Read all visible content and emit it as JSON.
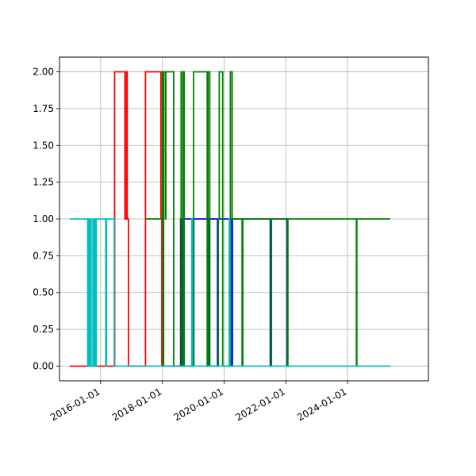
{
  "chart_data": {
    "type": "line",
    "step": "post",
    "title": "",
    "xlabel": "",
    "ylabel": "",
    "grid": true,
    "xlim": [
      "2014-09-01",
      "2026-08-15"
    ],
    "ylim": [
      -0.1,
      2.1
    ],
    "x_ticks": [
      "2016-01-01",
      "2018-01-01",
      "2020-01-01",
      "2022-01-01",
      "2024-01-01"
    ],
    "y_ticks": [
      0.0,
      0.25,
      0.5,
      0.75,
      1.0,
      1.25,
      1.5,
      1.75,
      2.0
    ],
    "y_tick_labels": [
      "0.00",
      "0.25",
      "0.50",
      "0.75",
      "1.00",
      "1.25",
      "1.50",
      "1.75",
      "2.00"
    ],
    "series": [
      {
        "color": "#ff0000",
        "x": [
          "2015-01-01",
          "2016-06-15",
          "2016-10-15",
          "2016-11-01",
          "2016-11-10",
          "2016-11-25",
          "2017-06-15",
          "2017-12-15",
          "2017-12-25"
        ],
        "y": [
          0,
          2,
          1,
          2,
          1,
          0,
          2,
          1,
          0
        ],
        "end": "2017-12-25"
      },
      {
        "color": "#0000ff",
        "x": [
          "2017-12-25",
          "2018-08-05",
          "2018-08-12",
          "2018-08-20",
          "2018-09-01",
          "2018-09-10",
          "2019-01-01",
          "2019-01-08",
          "2019-07-01",
          "2019-07-08",
          "2019-10-15",
          "2019-10-22",
          "2020-04-01",
          "2020-04-08",
          "2021-07-01",
          "2021-07-08",
          "2022-01-15",
          "2022-01-22"
        ],
        "y": [
          0,
          1,
          0,
          1,
          0,
          1,
          0,
          1,
          0,
          1,
          0,
          1,
          0,
          1,
          0,
          1,
          0,
          1
        ],
        "end": "2022-01-22"
      },
      {
        "color": "#008000",
        "x": [
          "2017-06-15",
          "2018-01-01",
          "2018-01-10",
          "2018-01-15",
          "2018-02-05",
          "2018-02-10",
          "2018-05-15",
          "2018-08-10",
          "2018-08-15",
          "2018-09-05",
          "2018-09-15",
          "2019-01-05",
          "2019-06-15",
          "2019-06-25",
          "2019-07-15",
          "2019-10-25",
          "2019-11-05",
          "2019-12-15",
          "2020-03-15",
          "2020-04-05",
          "2020-08-01",
          "2020-08-10",
          "2021-07-10",
          "2021-07-15",
          "2022-01-20",
          "2022-01-25",
          "2024-04-15",
          "2024-04-20"
        ],
        "y": [
          1,
          2,
          0,
          2,
          1,
          2,
          0,
          2,
          0,
          2,
          0,
          2,
          0,
          2,
          0,
          1,
          2,
          0,
          2,
          1,
          0,
          1,
          0,
          1,
          0,
          1,
          0,
          1
        ],
        "end": "2025-05-20"
      },
      {
        "color": "#00bfbf",
        "x": [
          "2015-01-01",
          "2015-08-01",
          "2015-08-10",
          "2015-08-20",
          "2015-09-01",
          "2015-09-10",
          "2015-10-01",
          "2015-10-10",
          "2015-10-20",
          "2015-11-01",
          "2015-11-10",
          "2016-03-01",
          "2016-03-10",
          "2016-06-10",
          "2018-01-01",
          "2018-12-15",
          "2018-12-22",
          "2020-03-01",
          "2020-03-08",
          "2025-05-20"
        ],
        "y": [
          1,
          0,
          1,
          0,
          1,
          0,
          1,
          0,
          1,
          0,
          1,
          0,
          1,
          0,
          0,
          1,
          0,
          1,
          0,
          0
        ],
        "end": "2025-05-20"
      }
    ]
  }
}
